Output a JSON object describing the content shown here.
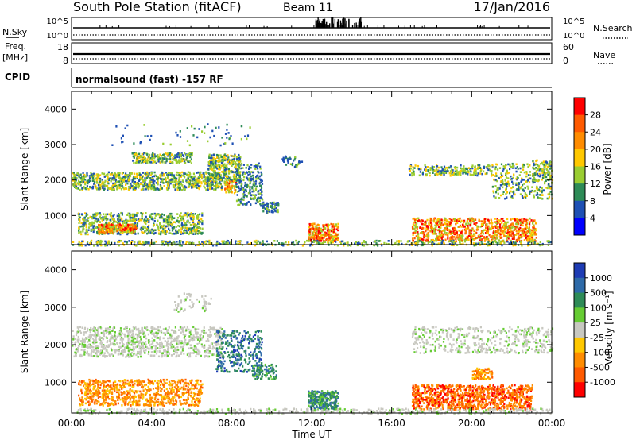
{
  "header": {
    "station": "South Pole Station (fitACF)",
    "beam": "Beam 11",
    "date": "17/Jan/2016"
  },
  "strips": {
    "nsky_label": "N.Sky",
    "nsearch_label": "N.Search",
    "nsky_ticks": [
      "10^5",
      "10^0"
    ],
    "nsearch_ticks": [
      "10^5",
      "10^0"
    ],
    "freq_label_line1": "Freq.",
    "freq_label_line2": "[MHz]",
    "freq_ticks": [
      "18",
      "8"
    ],
    "nave_label": "Nave",
    "nave_ticks": [
      "60",
      "0"
    ],
    "cpid_label": "CPID",
    "cpid_text": "normalsound (fast) -157 RF"
  },
  "panels": {
    "y_label": "Slant Range [km]",
    "y_ticks": [
      "4000",
      "3000",
      "2000",
      "1000"
    ],
    "x_label": "Time UT",
    "x_ticks": [
      "00:00",
      "04:00",
      "08:00",
      "12:00",
      "16:00",
      "20:00",
      "00:00"
    ]
  },
  "colorbars": {
    "power": {
      "label": "Power [dB]",
      "ticks": [
        "28",
        "24",
        "20",
        "16",
        "12",
        "8",
        "4"
      ],
      "colors": [
        "#ff0000",
        "#ff5a00",
        "#ff8c00",
        "#ffc800",
        "#9acd32",
        "#2e8b57",
        "#1e50b4",
        "#0000ff"
      ]
    },
    "velocity": {
      "label": "Velocity [m s⁻¹]",
      "ticks": [
        "1000",
        "500",
        "100",
        "25",
        "-25",
        "-100",
        "-500",
        "-1000"
      ],
      "colors": [
        "#1e3cb4",
        "#2e6aa8",
        "#2e8b57",
        "#66cc33",
        "#c8c8c0",
        "#ffc800",
        "#ff8c00",
        "#ff5a00",
        "#ff0000"
      ]
    }
  },
  "chart_data": [
    {
      "type": "heatmap",
      "title": "Power",
      "x_range_hours": [
        0,
        24
      ],
      "y_range_km": [
        180,
        4500
      ],
      "regions": [
        {
          "t": [
            0,
            7.5
          ],
          "r": [
            1750,
            2250
          ],
          "level": "mid"
        },
        {
          "t": [
            3,
            6
          ],
          "r": [
            2500,
            2800
          ],
          "level": "mid"
        },
        {
          "t": [
            7,
            8.5
          ],
          "r": [
            2000,
            2700
          ],
          "level": "high"
        },
        {
          "t": [
            7.5,
            10
          ],
          "r": [
            1100,
            2600
          ],
          "level": "mid"
        },
        {
          "t": [
            0.5,
            6.5
          ],
          "r": [
            500,
            1100
          ],
          "level": "mid"
        },
        {
          "t": [
            1.5,
            3
          ],
          "r": [
            550,
            750
          ],
          "level": "high"
        },
        {
          "t": [
            11.8,
            13.3
          ],
          "r": [
            300,
            800
          ],
          "level": "high"
        },
        {
          "t": [
            16.8,
            21
          ],
          "r": [
            2150,
            2450
          ],
          "level": "mid"
        },
        {
          "t": [
            17,
            23
          ],
          "r": [
            300,
            900
          ],
          "level": "high"
        },
        {
          "t": [
            21,
            24
          ],
          "r": [
            1500,
            2500
          ],
          "level": "mid"
        }
      ]
    },
    {
      "type": "heatmap",
      "title": "Velocity",
      "x_range_hours": [
        0,
        24
      ],
      "y_range_km": [
        180,
        4500
      ],
      "regions": [
        {
          "t": [
            0,
            7.5
          ],
          "r": [
            1700,
            2500
          ],
          "level": "-25 to 25"
        },
        {
          "t": [
            0.5,
            6.5
          ],
          "r": [
            400,
            1100
          ],
          "level": "-500 to -100"
        },
        {
          "t": [
            7.5,
            10
          ],
          "r": [
            1200,
            2300
          ],
          "level": "100 to 500"
        },
        {
          "t": [
            11.8,
            13.3
          ],
          "r": [
            300,
            800
          ],
          "level": "25 to 100"
        },
        {
          "t": [
            17,
            23
          ],
          "r": [
            300,
            900
          ],
          "level": "-500 to -100"
        },
        {
          "t": [
            17,
            24
          ],
          "r": [
            1800,
            2500
          ],
          "level": "-25 to 25"
        }
      ]
    }
  ]
}
